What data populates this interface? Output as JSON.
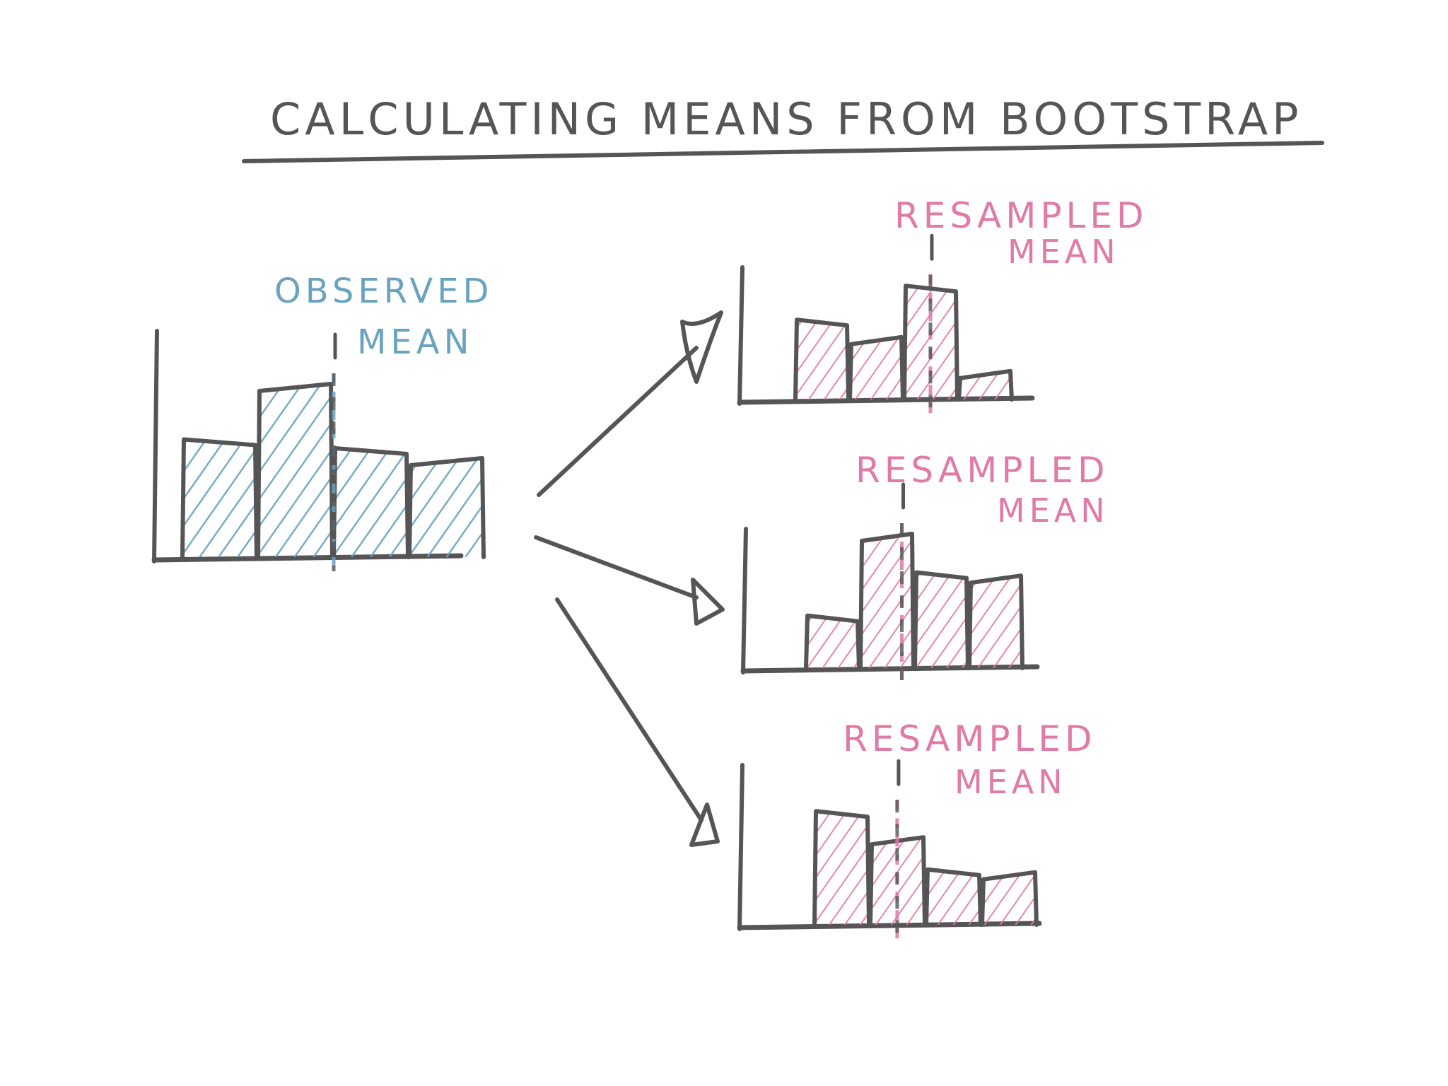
{
  "title": "CALCULATING MEANS FROM BOOTSTRAP",
  "colors": {
    "ink": "#555555",
    "observed": "#6aa3bf",
    "resampled": "#e07aa6",
    "background": "#ffffff"
  },
  "original": {
    "label_line1": "OBSERVED",
    "label_line2": "MEAN",
    "bar_heights": [
      0.65,
      0.96,
      0.6,
      0.54
    ],
    "mean_position": 0.5
  },
  "resamples": [
    {
      "label_line1": "RESAMPLED",
      "label_line2": "MEAN",
      "bar_heights": [
        0.68,
        0.52,
        0.98,
        0.22
      ],
      "mean_position": 0.62
    },
    {
      "label_line1": "RESAMPLED",
      "label_line2": "MEAN",
      "bar_heights": [
        0.38,
        1.0,
        0.71,
        0.68
      ],
      "mean_position": 0.44
    },
    {
      "label_line1": "RESAMPLED",
      "label_line2": "MEAN",
      "bar_heights": [
        0.95,
        0.72,
        0.45,
        0.42
      ],
      "mean_position": 0.37
    }
  ],
  "icons": [
    "arrow-icon",
    "arrow-icon",
    "arrow-icon"
  ]
}
